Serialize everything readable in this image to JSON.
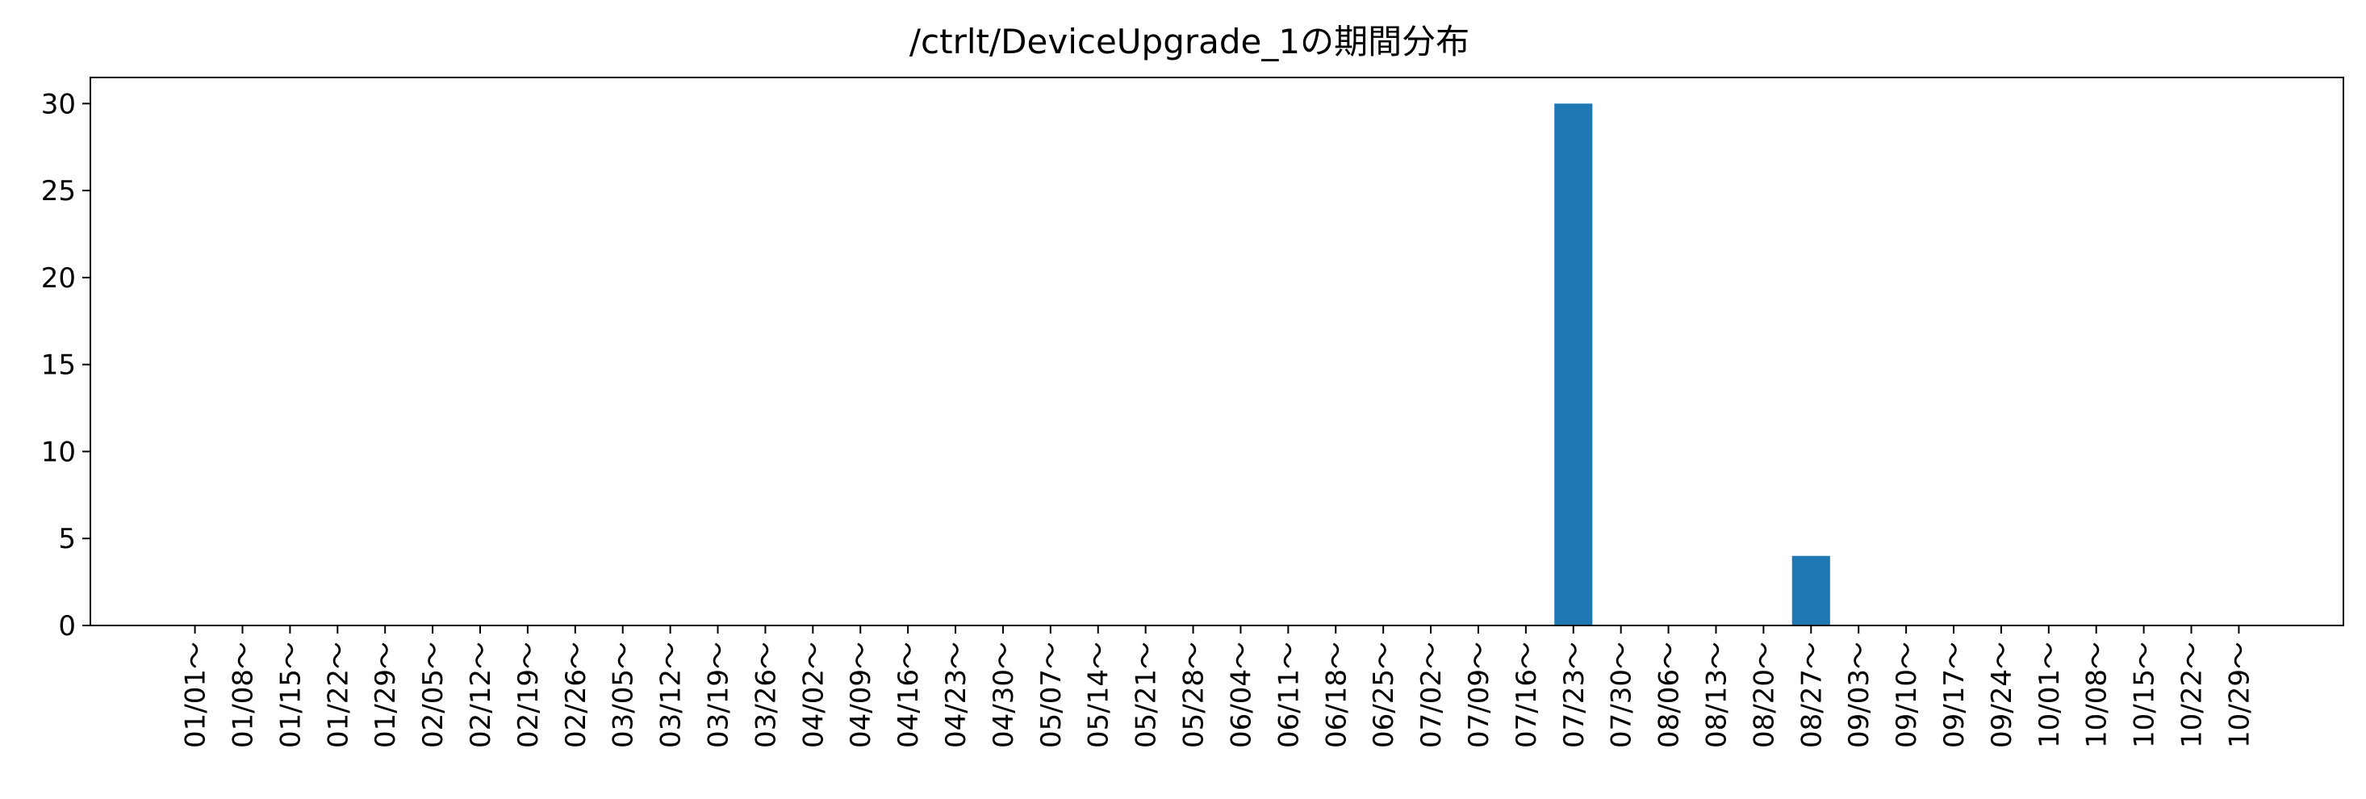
{
  "chart_data": {
    "type": "bar",
    "title": "/ctrlt/DeviceUpgrade_1の期間分布",
    "xlabel": "",
    "ylabel": "",
    "ylim": [
      0,
      31.5
    ],
    "yticks": [
      0,
      5,
      10,
      15,
      20,
      25,
      30
    ],
    "grid": false,
    "bar_color": "#1f77b4",
    "categories": [
      "01/01～",
      "01/08～",
      "01/15～",
      "01/22～",
      "01/29～",
      "02/05～",
      "02/12～",
      "02/19～",
      "02/26～",
      "03/05～",
      "03/12～",
      "03/19～",
      "03/26～",
      "04/02～",
      "04/09～",
      "04/16～",
      "04/23～",
      "04/30～",
      "05/07～",
      "05/14～",
      "05/21～",
      "05/28～",
      "06/04～",
      "06/11～",
      "06/18～",
      "06/25～",
      "07/02～",
      "07/09～",
      "07/16～",
      "07/23～",
      "07/30～",
      "08/06～",
      "08/13～",
      "08/20～",
      "08/27～",
      "09/03～",
      "09/10～",
      "09/17～",
      "09/24～",
      "10/01～",
      "10/08～",
      "10/15～",
      "10/22～",
      "10/29～"
    ],
    "values": [
      0,
      0,
      0,
      0,
      0,
      0,
      0,
      0,
      0,
      0,
      0,
      0,
      0,
      0,
      0,
      0,
      0,
      0,
      0,
      0,
      0,
      0,
      0,
      0,
      0,
      0,
      0,
      0,
      0,
      30,
      0,
      0,
      0,
      0,
      4,
      0,
      0,
      0,
      0,
      0,
      0,
      0,
      0,
      0
    ]
  }
}
